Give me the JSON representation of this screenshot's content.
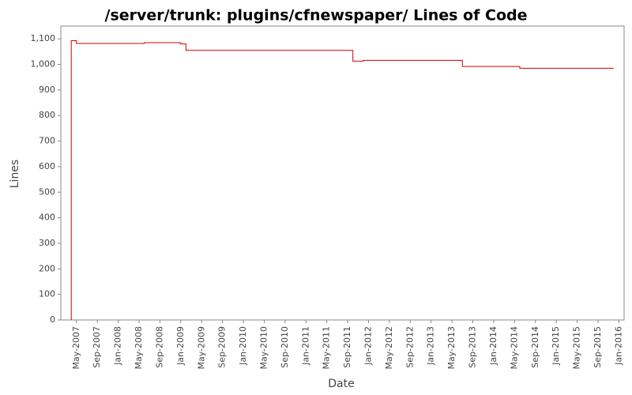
{
  "chart_data": {
    "type": "line",
    "step": true,
    "title": "/server/trunk: plugins/cfnewspaper/ Lines of Code",
    "x_label": "Date",
    "y_label": "Lines",
    "x": [
      "2007-04",
      "2007-04",
      "2007-05",
      "2007-05",
      "2008-06",
      "2009-01",
      "2009-02",
      "2011-10",
      "2011-12",
      "2013-07",
      "2014-06",
      "2015-12"
    ],
    "series": [
      {
        "name": "Lines",
        "color": "#cc0000",
        "values": [
          0,
          1093,
          1088,
          1082,
          1085,
          1080,
          1055,
          1013,
          1016,
          992,
          985,
          985
        ]
      }
    ],
    "xlim": [
      "2007-02",
      "2016-02"
    ],
    "xticks": [
      {
        "value": "2007-05",
        "label": "May-2007"
      },
      {
        "value": "2007-09",
        "label": "Sep-2007"
      },
      {
        "value": "2008-01",
        "label": "Jan-2008"
      },
      {
        "value": "2008-05",
        "label": "May-2008"
      },
      {
        "value": "2008-09",
        "label": "Sep-2008"
      },
      {
        "value": "2009-01",
        "label": "Jan-2009"
      },
      {
        "value": "2009-05",
        "label": "May-2009"
      },
      {
        "value": "2009-09",
        "label": "Sep-2009"
      },
      {
        "value": "2010-01",
        "label": "Jan-2010"
      },
      {
        "value": "2010-05",
        "label": "May-2010"
      },
      {
        "value": "2010-09",
        "label": "Sep-2010"
      },
      {
        "value": "2011-01",
        "label": "Jan-2011"
      },
      {
        "value": "2011-05",
        "label": "May-2011"
      },
      {
        "value": "2011-09",
        "label": "Sep-2011"
      },
      {
        "value": "2012-01",
        "label": "Jan-2012"
      },
      {
        "value": "2012-05",
        "label": "May-2012"
      },
      {
        "value": "2012-09",
        "label": "Sep-2012"
      },
      {
        "value": "2013-01",
        "label": "Jan-2013"
      },
      {
        "value": "2013-05",
        "label": "May-2013"
      },
      {
        "value": "2013-09",
        "label": "Sep-2013"
      },
      {
        "value": "2014-01",
        "label": "Jan-2014"
      },
      {
        "value": "2014-05",
        "label": "May-2014"
      },
      {
        "value": "2014-09",
        "label": "Sep-2014"
      },
      {
        "value": "2015-01",
        "label": "Jan-2015"
      },
      {
        "value": "2015-05",
        "label": "May-2015"
      },
      {
        "value": "2015-09",
        "label": "Sep-2015"
      },
      {
        "value": "2016-01",
        "label": "Jan-2016"
      }
    ],
    "ylim": [
      0,
      1150
    ],
    "yticks": [
      0,
      100,
      200,
      300,
      400,
      500,
      600,
      700,
      800,
      900,
      {
        "value": 1000,
        "label": "1,000"
      },
      {
        "value": 1100,
        "label": "1,100"
      }
    ],
    "grid": false
  }
}
